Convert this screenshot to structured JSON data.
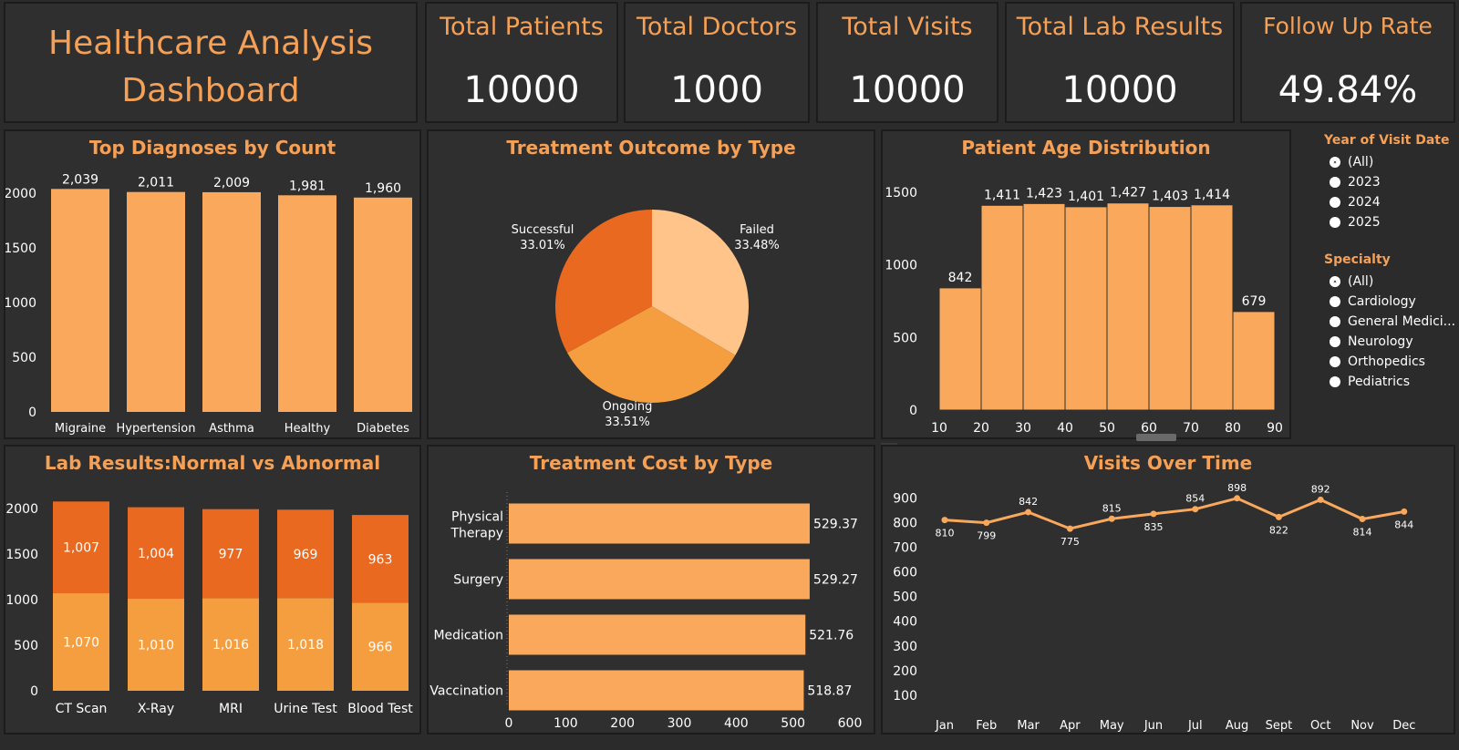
{
  "dashboard_title": "Healthcare Analysis Dashboard",
  "kpis": [
    {
      "title": "Total Patients",
      "value": "10000"
    },
    {
      "title": "Total Doctors",
      "value": "1000"
    },
    {
      "title": "Total Visits",
      "value": "10000"
    },
    {
      "title": "Total Lab Results",
      "value": "10000"
    },
    {
      "title": "Follow Up Rate",
      "value": "49.84%"
    }
  ],
  "filters": {
    "year": {
      "label": "Year of Visit Date",
      "options": [
        "(All)",
        "2023",
        "2024",
        "2025"
      ],
      "selected": "(All)"
    },
    "specialty": {
      "label": "Specialty",
      "options": [
        "(All)",
        "Cardiology",
        "General Medici...",
        "Neurology",
        "Orthopedics",
        "Pediatrics"
      ],
      "selected": "(All)"
    }
  },
  "toolbar_icons": [
    "close-icon",
    "expand-icon",
    "filter-icon",
    "pin-icon",
    "more-icon"
  ],
  "colors": {
    "orange_light": "#f9a85c",
    "orange_dark": "#e8691f",
    "orange_mid": "#f59e3f",
    "peach": "#ffc48a",
    "title": "#f5a057"
  },
  "chart_data": [
    {
      "type": "bar",
      "title": "Top Diagnoses by Count",
      "categories": [
        "Migraine",
        "Hypertension",
        "Asthma",
        "Healthy",
        "Diabetes"
      ],
      "values": [
        2039,
        2011,
        2009,
        1981,
        1960
      ],
      "value_labels": [
        "2,039",
        "2,011",
        "2,009",
        "1,981",
        "1,960"
      ],
      "yticks": [
        0,
        500,
        1000,
        1500,
        2000
      ],
      "ylim": [
        0,
        2150
      ]
    },
    {
      "type": "pie",
      "title": "Treatment Outcome by Type",
      "slices": [
        {
          "name": "Failed",
          "value": 33.48,
          "label": "33.48%"
        },
        {
          "name": "Ongoing",
          "value": 33.51,
          "label": "33.51%"
        },
        {
          "name": "Successful",
          "value": 33.01,
          "label": "33.01%"
        }
      ]
    },
    {
      "type": "bar",
      "title": "Patient Age Distribution",
      "bins": [
        [
          10,
          20
        ],
        [
          20,
          30
        ],
        [
          30,
          40
        ],
        [
          40,
          50
        ],
        [
          50,
          60
        ],
        [
          60,
          70
        ],
        [
          70,
          80
        ],
        [
          80,
          90
        ]
      ],
      "values": [
        842,
        1411,
        1423,
        1401,
        1427,
        1403,
        1414,
        679
      ],
      "value_labels": [
        "842",
        "1,411",
        "1,423",
        "1,401",
        "1,427",
        "1,403",
        "1,414",
        "679"
      ],
      "xticks": [
        10,
        20,
        30,
        40,
        50,
        60,
        70,
        80,
        90
      ],
      "yticks": [
        0,
        500,
        1000,
        1500
      ],
      "ylim": [
        0,
        1620
      ]
    },
    {
      "type": "bar",
      "title": "Lab Results:Normal vs Abnormal",
      "categories": [
        "CT Scan",
        "X-Ray",
        "MRI",
        "Urine Test",
        "Blood Test"
      ],
      "series": [
        {
          "values": [
            1070,
            1010,
            1016,
            1018,
            966
          ],
          "labels": [
            "1,070",
            "1,010",
            "1,016",
            "1,018",
            "966"
          ]
        },
        {
          "values": [
            1007,
            1004,
            977,
            969,
            963
          ],
          "labels": [
            "1,007",
            "1,004",
            "977",
            "969",
            "963"
          ]
        }
      ],
      "yticks": [
        0,
        500,
        1000,
        1500,
        2000
      ],
      "ylim": [
        0,
        2200
      ]
    },
    {
      "type": "bar",
      "title": "Treatment Cost by Type",
      "categories": [
        "Physical Therapy",
        "Surgery",
        "Medication",
        "Vaccination"
      ],
      "values": [
        529.37,
        529.27,
        521.76,
        518.87
      ],
      "value_labels": [
        "529.37",
        "529.27",
        "521.76",
        "518.87"
      ],
      "xticks": [
        0,
        100,
        200,
        300,
        400,
        500,
        600
      ],
      "xlim": [
        0,
        600
      ]
    },
    {
      "type": "line",
      "title": "Visits Over Time",
      "x": [
        "Jan",
        "Feb",
        "Mar",
        "Apr",
        "May",
        "Jun",
        "Jul",
        "Aug",
        "Sept",
        "Oct",
        "Nov",
        "Dec"
      ],
      "values": [
        810,
        799,
        842,
        775,
        815,
        835,
        854,
        898,
        822,
        892,
        814,
        844
      ],
      "yticks": [
        100,
        200,
        300,
        400,
        500,
        600,
        700,
        800,
        900
      ],
      "ylim": [
        0,
        960
      ]
    }
  ]
}
